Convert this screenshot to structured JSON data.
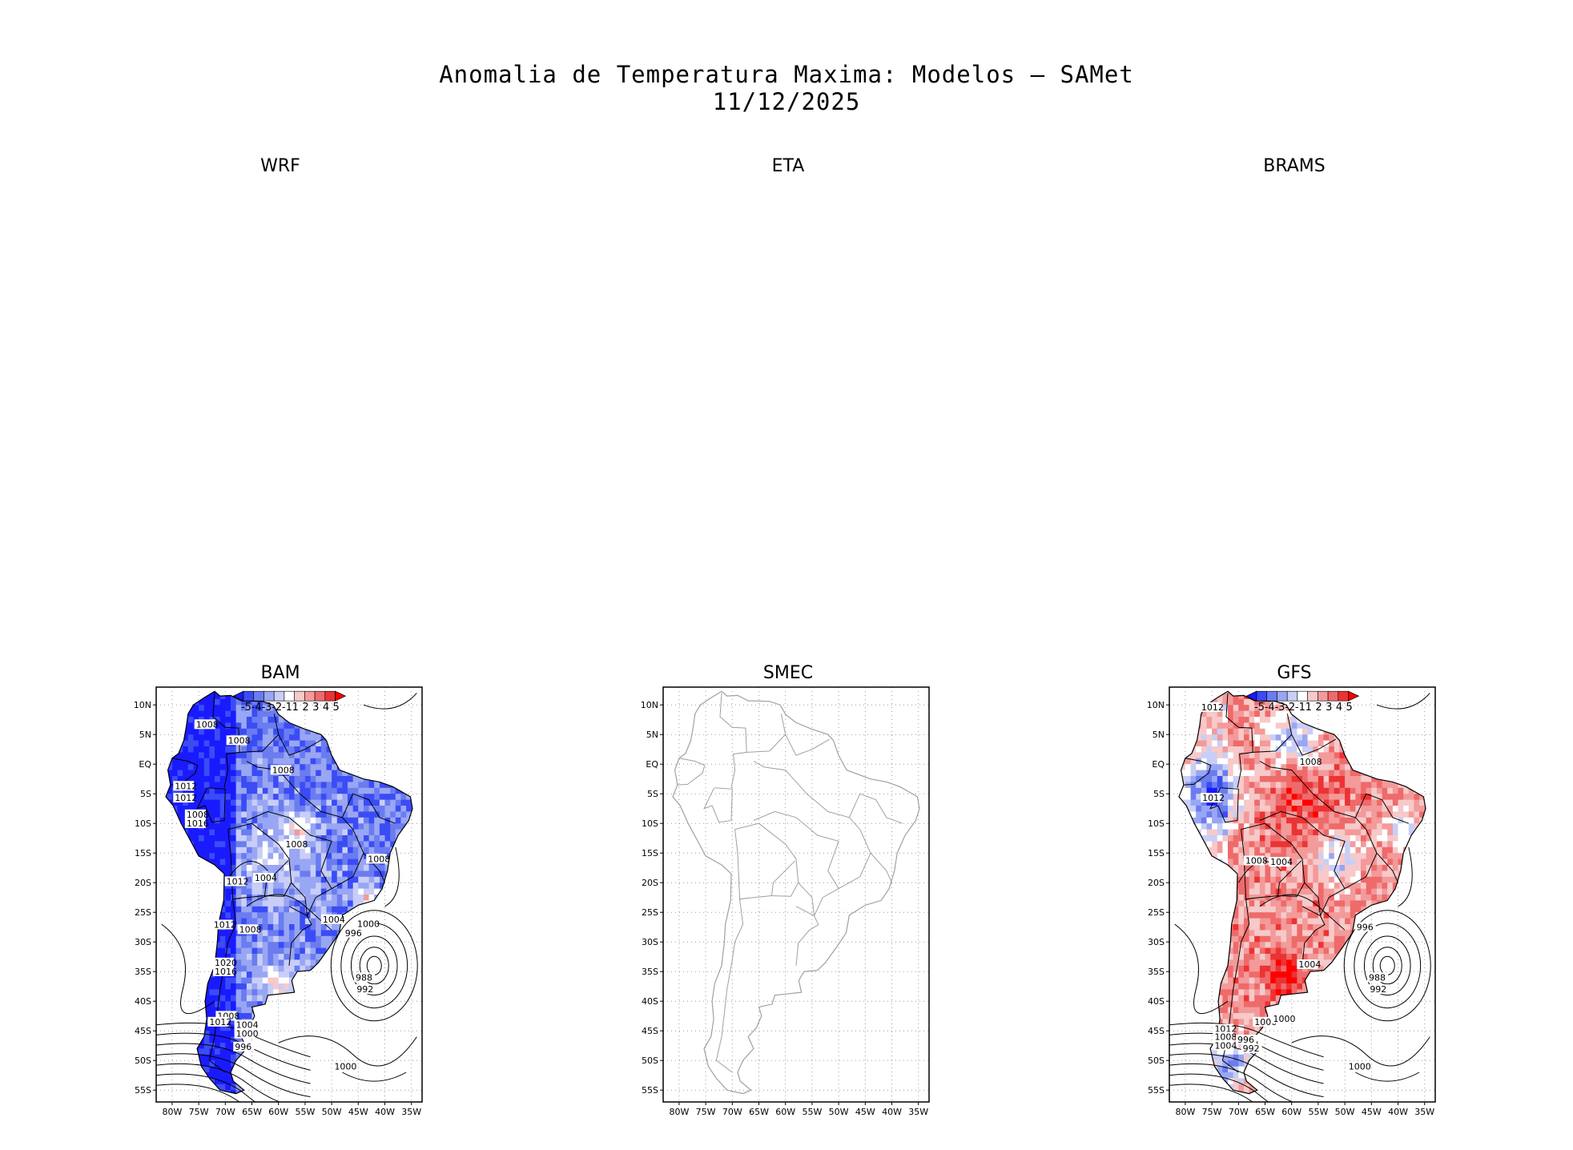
{
  "figure": {
    "title_line1": "Anomalia de Temperatura Maxima: Modelos — SAMet",
    "title_line2": "11/12/2025"
  },
  "panels": [
    {
      "id": "wrf",
      "label": "WRF",
      "has_map": false
    },
    {
      "id": "eta",
      "label": "ETA",
      "has_map": false
    },
    {
      "id": "brams",
      "label": "BRAMS",
      "has_map": false
    },
    {
      "id": "bam",
      "label": "BAM",
      "has_map": true,
      "field": "cold-dominant",
      "isobar_labels": [
        "1008",
        "1008",
        "1008",
        "1012",
        "1012",
        "1008",
        "1016",
        "1008",
        "1008",
        "1004",
        "1012",
        "1004",
        "1012",
        "1008",
        "1000",
        "996",
        "988",
        "992",
        "1020",
        "1016",
        "1008",
        "1012",
        "1004",
        "1000",
        "996",
        "1000"
      ]
    },
    {
      "id": "smec",
      "label": "SMEC",
      "has_map": true,
      "field": "none",
      "isobar_labels": []
    },
    {
      "id": "gfs",
      "label": "GFS",
      "has_map": true,
      "field": "warm-dominant",
      "isobar_labels": [
        "1012",
        "1008",
        "1012",
        "1008",
        "1004",
        "1000",
        "996",
        "1004",
        "988",
        "992",
        "1000",
        "1012",
        "1008",
        "1004",
        "996",
        "992",
        "1000"
      ]
    }
  ],
  "axes": {
    "lat_ticks": [
      "10N",
      "5N",
      "EQ",
      "5S",
      "10S",
      "15S",
      "20S",
      "25S",
      "30S",
      "35S",
      "40S",
      "45S",
      "50S",
      "55S"
    ],
    "lon_ticks": [
      "80W",
      "75W",
      "70W",
      "65W",
      "60W",
      "55W",
      "50W",
      "45W",
      "40W",
      "35W"
    ]
  },
  "colorbar": {
    "labels": [
      "-5",
      "-4",
      "-3",
      "-2",
      "-1",
      "1",
      "2",
      "3",
      "4",
      "5"
    ],
    "colors": [
      "#1a1aff",
      "#3b4cf5",
      "#6a7cf0",
      "#98a6f3",
      "#c8cef7",
      "#ffffff",
      "#f7c9c9",
      "#f39a9a",
      "#ef6a6a",
      "#ec3333",
      "#ff0000"
    ]
  }
}
